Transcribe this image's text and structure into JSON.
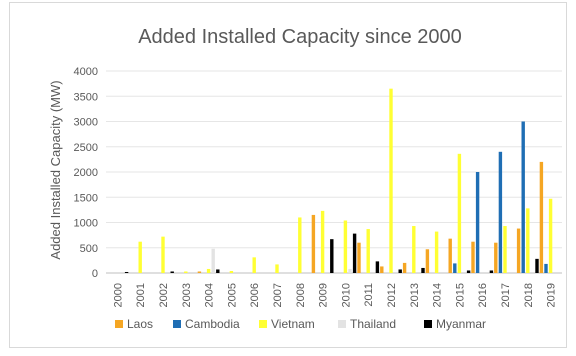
{
  "chart_data": {
    "type": "bar",
    "title": "Added Installed Capacity since 2000",
    "xlabel": "",
    "ylabel": "Added Installed Capacity (MW)",
    "ylim": [
      0,
      4000
    ],
    "yticks": [
      0,
      500,
      1000,
      1500,
      2000,
      2500,
      3000,
      3500,
      4000
    ],
    "grid": true,
    "legend_position": "bottom",
    "categories": [
      "2000",
      "2001",
      "2002",
      "2003",
      "2004",
      "2005",
      "2006",
      "2007",
      "2008",
      "2009",
      "2010",
      "2011",
      "2012",
      "2013",
      "2014",
      "2015",
      "2016",
      "2017",
      "2018",
      "2019"
    ],
    "series": [
      {
        "name": "Laos",
        "color": "#f5a623",
        "values": [
          0,
          0,
          0,
          0,
          30,
          0,
          0,
          0,
          0,
          1150,
          0,
          600,
          130,
          200,
          470,
          680,
          620,
          600,
          880,
          2200
        ]
      },
      {
        "name": "Cambodia",
        "color": "#1f6eb4",
        "values": [
          0,
          0,
          0,
          0,
          0,
          0,
          0,
          0,
          0,
          0,
          0,
          0,
          0,
          0,
          0,
          190,
          2000,
          2400,
          3000,
          180
        ]
      },
      {
        "name": "Vietnam",
        "color": "#ffff33",
        "values": [
          0,
          620,
          720,
          30,
          80,
          40,
          310,
          170,
          1100,
          1230,
          1040,
          870,
          3650,
          930,
          820,
          2360,
          0,
          930,
          1280,
          1470
        ]
      },
      {
        "name": "Thailand",
        "color": "#e3e3e3",
        "values": [
          0,
          0,
          0,
          0,
          480,
          0,
          0,
          0,
          0,
          0,
          80,
          0,
          0,
          0,
          0,
          0,
          0,
          0,
          0,
          0
        ]
      },
      {
        "name": "Myanmar",
        "color": "#000000",
        "values": [
          20,
          0,
          30,
          0,
          70,
          0,
          0,
          0,
          0,
          670,
          780,
          230,
          70,
          100,
          0,
          50,
          50,
          0,
          280,
          0
        ]
      }
    ]
  }
}
